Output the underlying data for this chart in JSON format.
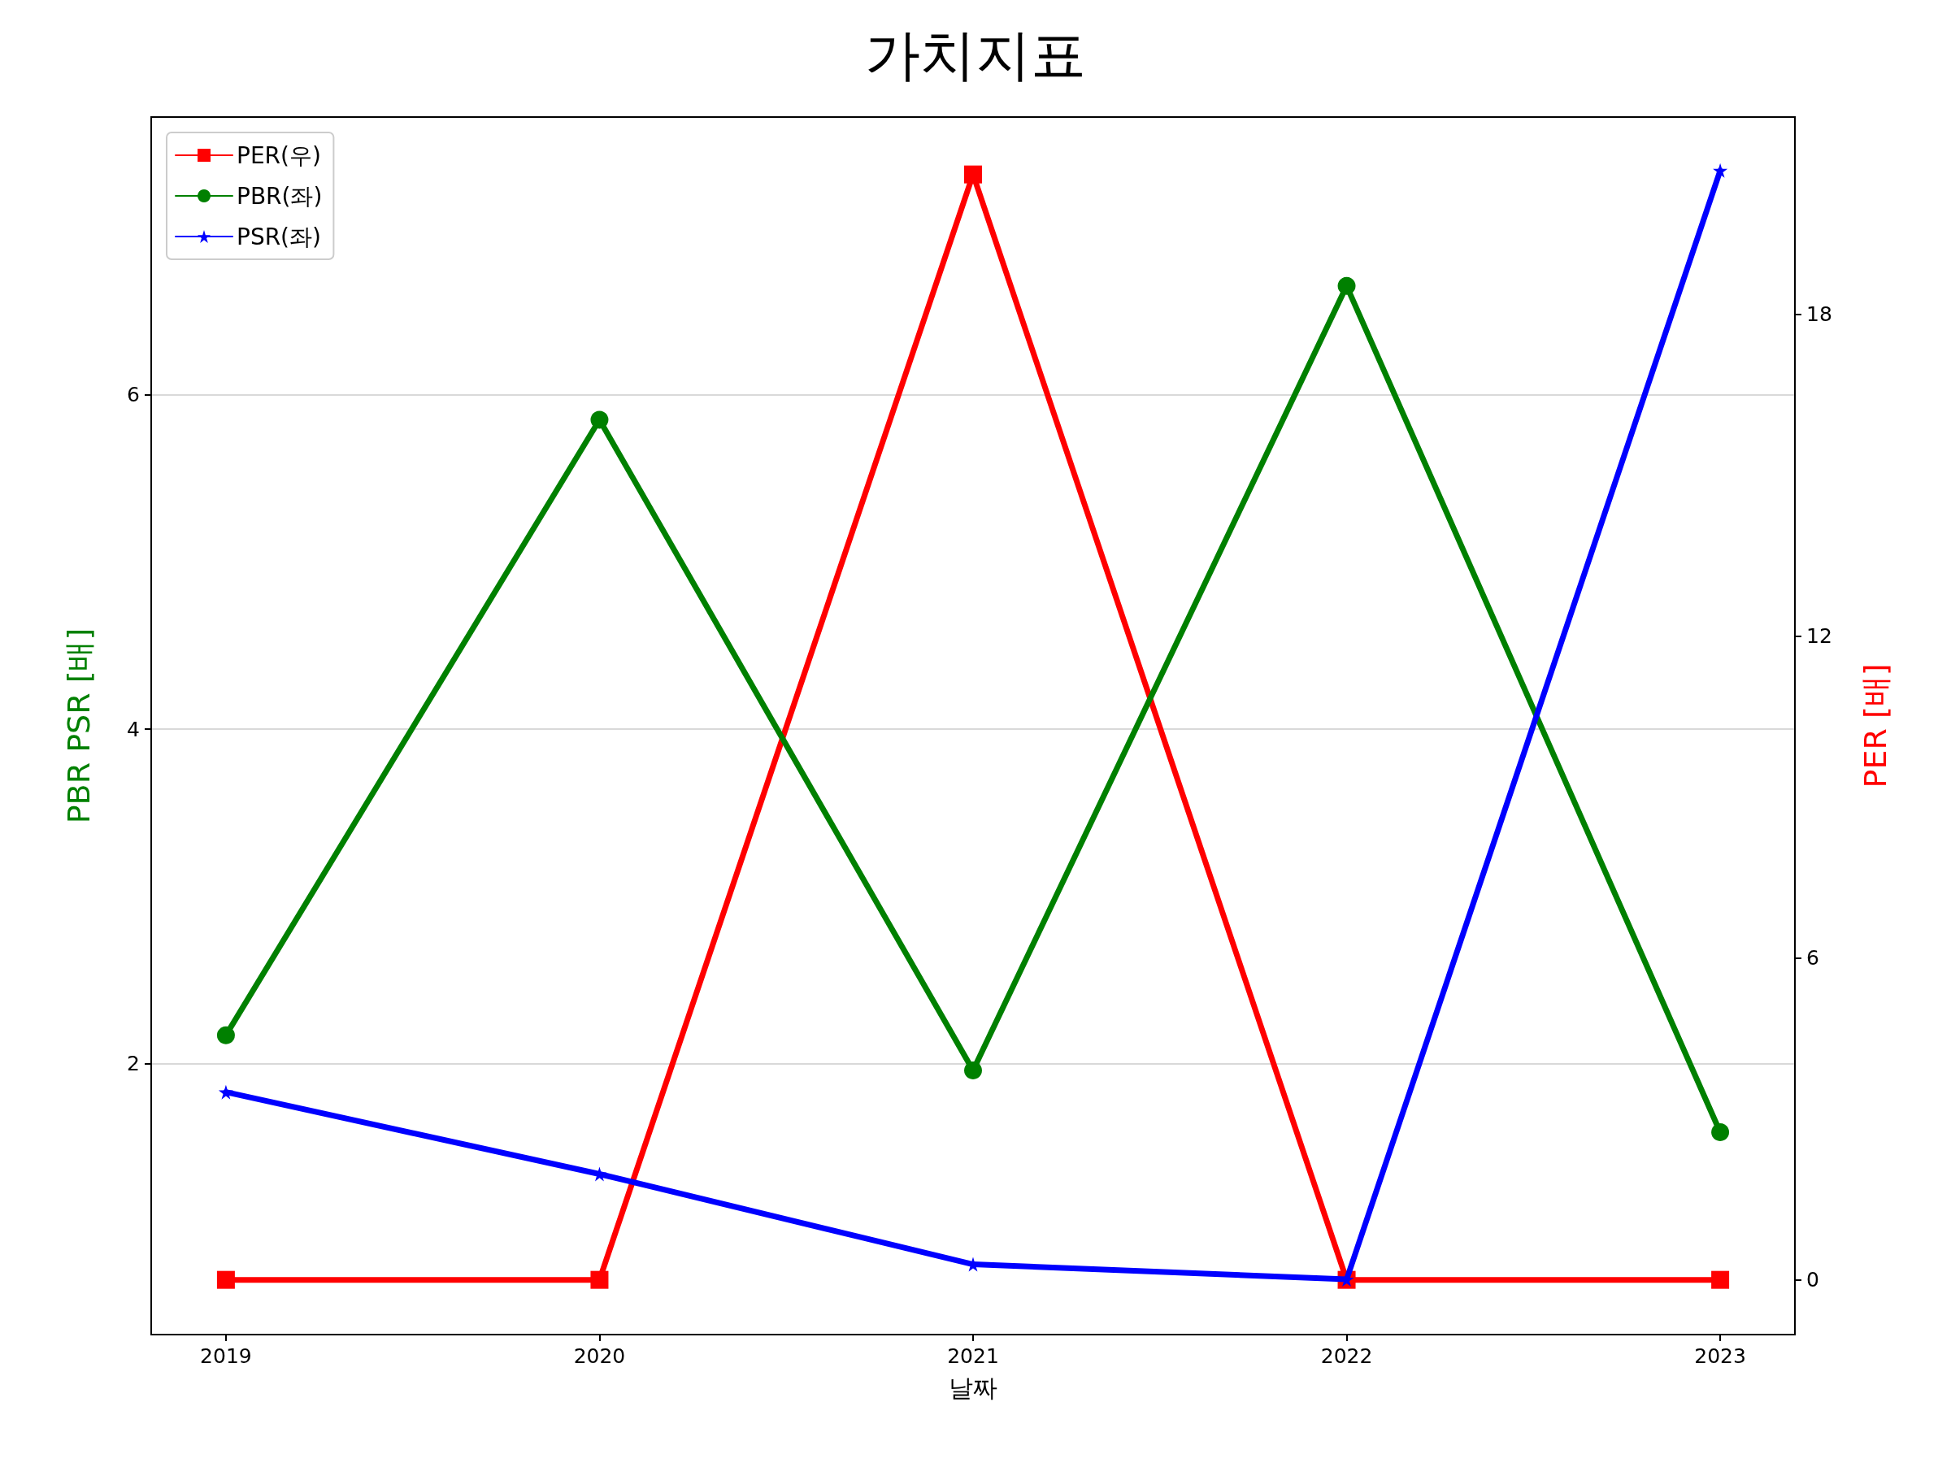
{
  "chart_data": {
    "type": "line",
    "title": "가치지표",
    "xlabel": "날짜",
    "ylabel": "PBR PSR [배]",
    "y2label": "PER [배]",
    "x": [
      2019,
      2020,
      2021,
      2022,
      2023
    ],
    "xlim": [
      2018.8,
      2023.2
    ],
    "xticks": [
      2019,
      2020,
      2021,
      2022,
      2023
    ],
    "ylim": [
      0.38,
      7.66
    ],
    "yticks": [
      2,
      4,
      6
    ],
    "y2lim": [
      -1.02,
      21.67
    ],
    "y2ticks": [
      0,
      6,
      12,
      18
    ],
    "grid": "y",
    "legend": "top left",
    "line_style": "solid",
    "series": [
      {
        "name": "PER(우)",
        "color": "#ff0000",
        "axis": "y2",
        "marker": "square",
        "values": [
          0,
          0,
          20.6,
          0,
          0
        ]
      },
      {
        "name": "PBR(좌)",
        "color": "#008000",
        "marker": "circle",
        "values": [
          2.17,
          5.85,
          1.96,
          6.65,
          1.59
        ]
      },
      {
        "name": "PSR(좌)",
        "color": "#0000ff",
        "marker": "star",
        "values": [
          1.83,
          1.34,
          0.8,
          0.71,
          7.34
        ]
      }
    ]
  }
}
